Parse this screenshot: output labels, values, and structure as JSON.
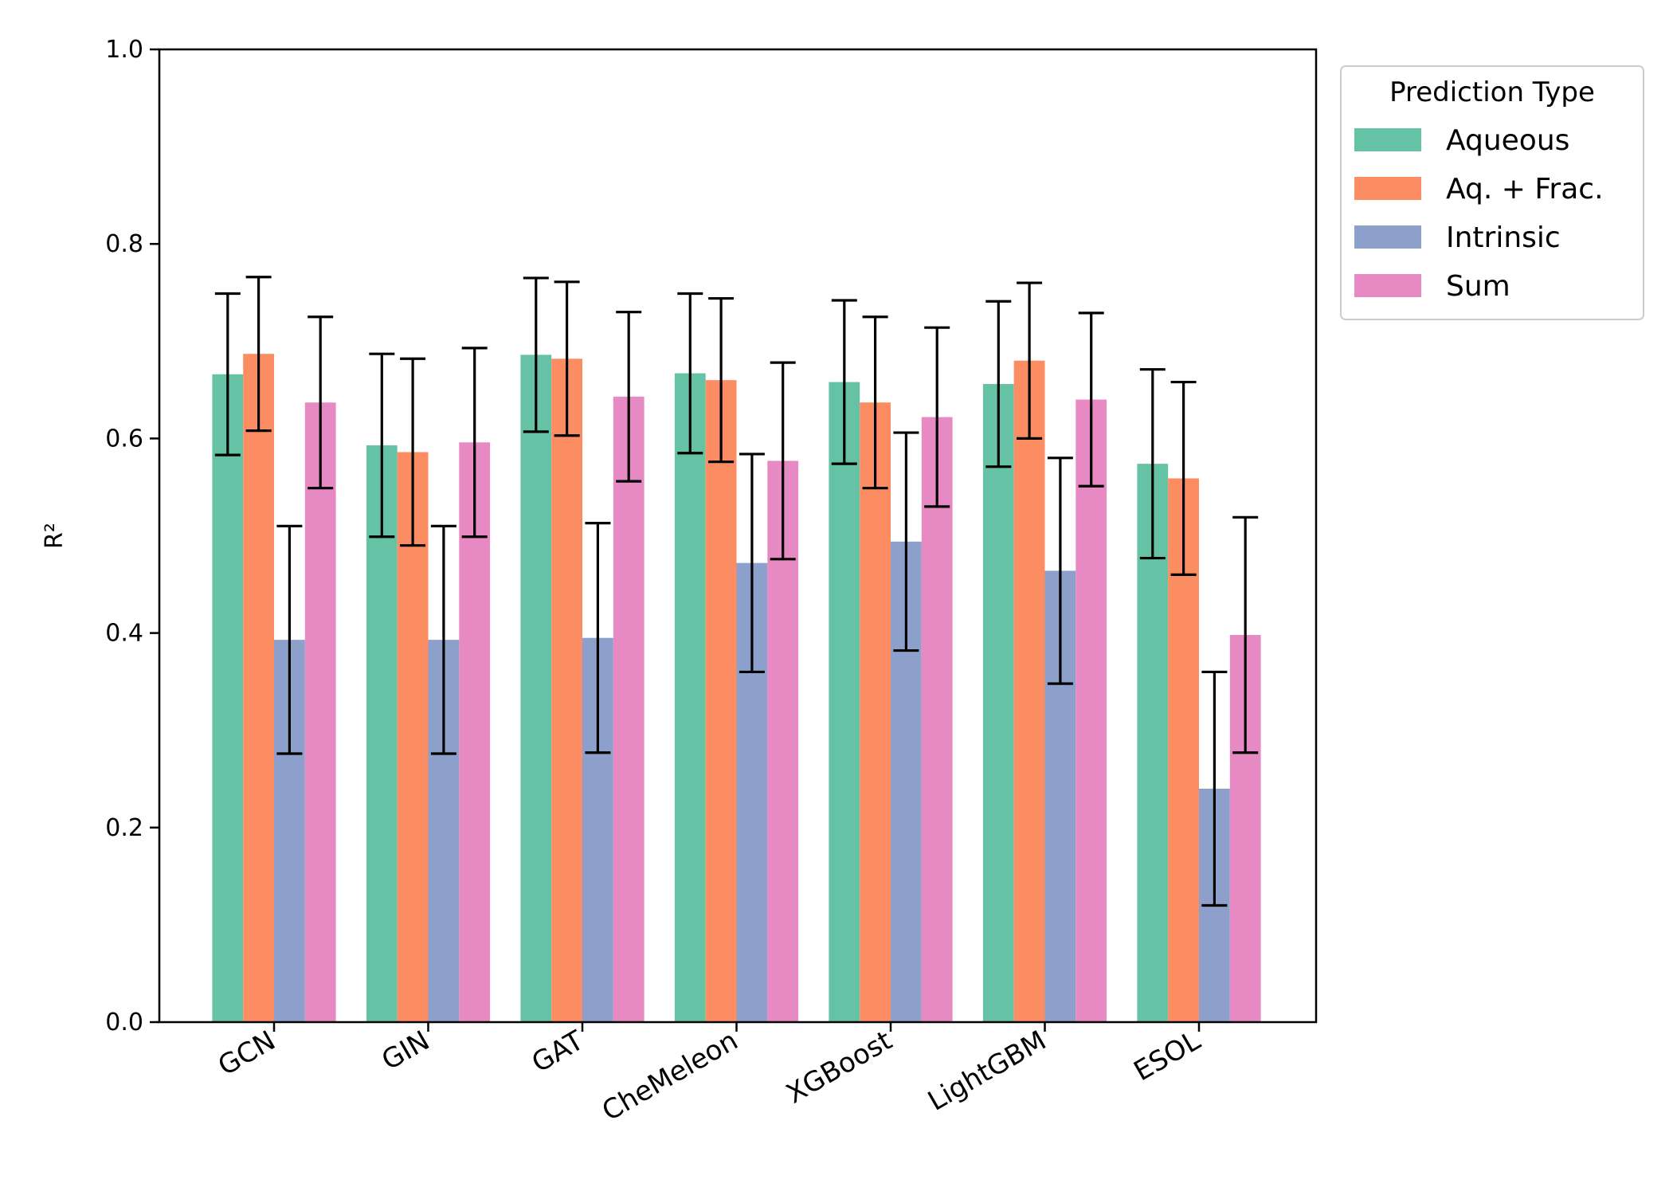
{
  "chart_data": {
    "type": "bar",
    "title": "",
    "xlabel": "",
    "ylabel": "R²",
    "ylim": [
      0,
      1.0
    ],
    "yticks": [
      "0.0",
      "0.2",
      "0.4",
      "0.6",
      "0.8",
      "1.0"
    ],
    "categories": [
      "GCN",
      "GIN",
      "GAT",
      "CheMeleon",
      "XGBoost",
      "LightGBM",
      "ESOL"
    ],
    "legend": {
      "title": "Prediction Type",
      "placement": "outside-top-right"
    },
    "series": [
      {
        "name": "Aqueous",
        "color": "#66c2a5",
        "values": [
          0.666,
          0.593,
          0.686,
          0.667,
          0.658,
          0.656,
          0.574
        ],
        "errors": [
          0.083,
          0.094,
          0.079,
          0.082,
          0.084,
          0.085,
          0.097
        ]
      },
      {
        "name": "Aq. + Frac.",
        "color": "#fc8d62",
        "values": [
          0.687,
          0.586,
          0.682,
          0.66,
          0.637,
          0.68,
          0.559
        ],
        "errors": [
          0.079,
          0.096,
          0.079,
          0.084,
          0.088,
          0.08,
          0.099
        ]
      },
      {
        "name": "Intrinsic",
        "color": "#8da0cb",
        "values": [
          0.393,
          0.393,
          0.395,
          0.472,
          0.494,
          0.464,
          0.24
        ],
        "errors": [
          0.117,
          0.117,
          0.118,
          0.112,
          0.112,
          0.116,
          0.12
        ]
      },
      {
        "name": "Sum",
        "color": "#e78ac3",
        "values": [
          0.637,
          0.596,
          0.643,
          0.577,
          0.622,
          0.64,
          0.398
        ],
        "errors": [
          0.088,
          0.097,
          0.087,
          0.101,
          0.092,
          0.089,
          0.121
        ]
      }
    ],
    "error_bar_color": "#000000",
    "grid": false
  }
}
